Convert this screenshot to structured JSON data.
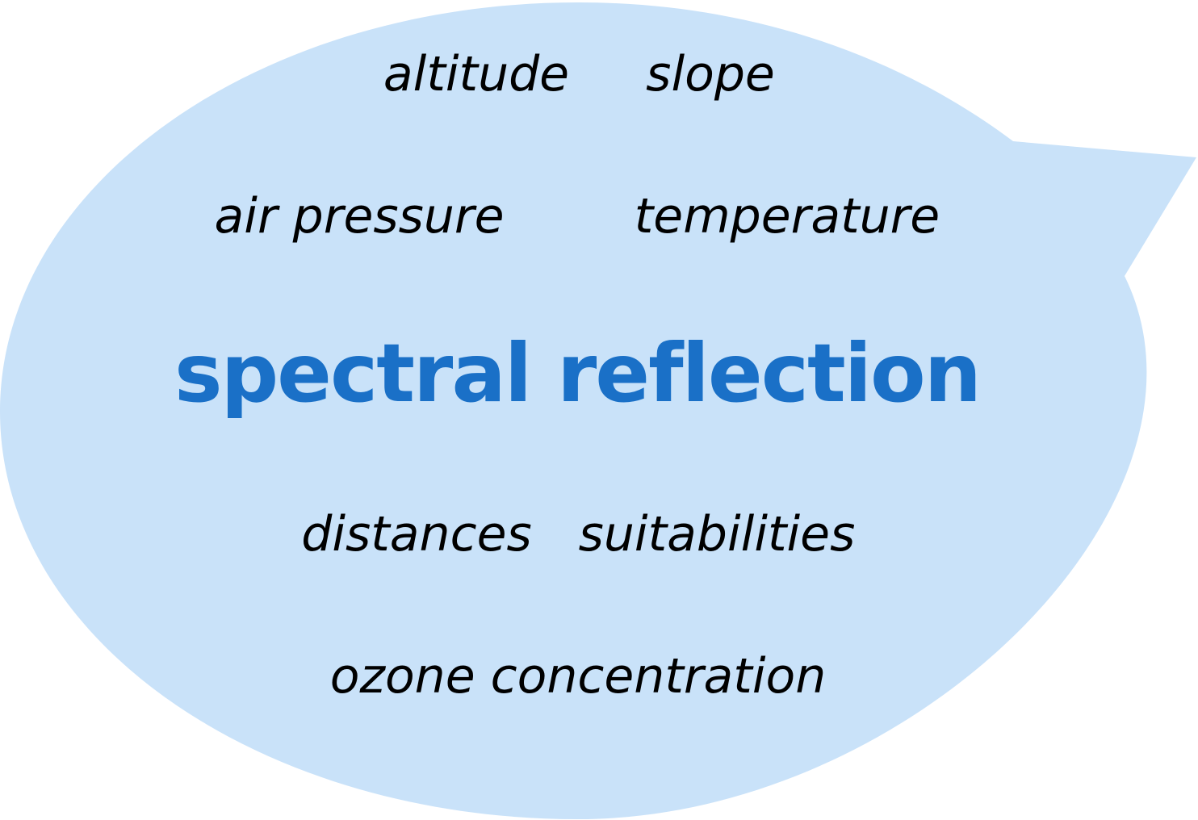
{
  "colors": {
    "bubble_fill": "#c9e2f9",
    "central_text": "#1a70c7",
    "term_text": "#000000"
  },
  "bubble": {
    "shape": "speech-bubble",
    "tail_direction": "upper-right"
  },
  "central_term": "spectral reflection",
  "terms": {
    "altitude": "altitude",
    "slope": "slope",
    "air_pressure": "air pressure",
    "temperature": "temperature",
    "distances": "distances",
    "suitabilities": "suitabilities",
    "ozone_concentration": "ozone concentration"
  }
}
